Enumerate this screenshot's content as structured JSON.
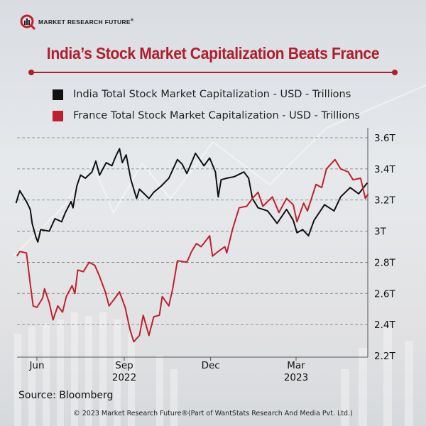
{
  "brand": {
    "name": "MARKET RESEARCH FUTURE",
    "reg": "®"
  },
  "title": "India’s Stock Market Capitalization Beats France",
  "source": "Source: Bloomberg",
  "copyright": "© 2023 Market Research Future®(Part of WantStats Research And Media Pvt. Ltd.)",
  "colors": {
    "india": "#111111",
    "france": "#c0202e",
    "accent": "#b11e2b"
  },
  "chart_data": {
    "type": "line",
    "title": "India’s Stock Market Capitalization Beats France",
    "xlabel": "",
    "ylabel": "",
    "x_unit": "days since 2022-06-01",
    "xlim": [
      -21,
      349
    ],
    "ylim": [
      2.2,
      3.6
    ],
    "yticks": [
      {
        "v": 2.2,
        "label": "2.2T"
      },
      {
        "v": 2.4,
        "label": "2.4T"
      },
      {
        "v": 2.6,
        "label": "2.6T"
      },
      {
        "v": 2.8,
        "label": "2.8T"
      },
      {
        "v": 3.0,
        "label": "3T"
      },
      {
        "v": 3.2,
        "label": "3.2T"
      },
      {
        "v": 3.4,
        "label": "3.4T"
      },
      {
        "v": 3.6,
        "label": "3.6T"
      }
    ],
    "xticks": [
      {
        "d": 0,
        "label": "Jun",
        "sub": ""
      },
      {
        "d": 92,
        "label": "Sep",
        "sub": "2022"
      },
      {
        "d": 183,
        "label": "Dec",
        "sub": ""
      },
      {
        "d": 273,
        "label": "Mar",
        "sub": "2023"
      }
    ],
    "grid": "horizontal-dashed",
    "legend_position": "top",
    "series": [
      {
        "name": "India Total Stock Market Capitalization - USD - Trillions",
        "color": "#111111",
        "x": [
          -22,
          -18,
          -11,
          -7,
          -5,
          -1,
          1,
          4,
          13,
          19,
          26,
          30,
          36,
          38,
          42,
          46,
          51,
          58,
          62,
          66,
          73,
          79,
          83,
          87,
          90,
          94,
          99,
          105,
          108,
          118,
          123,
          131,
          139,
          148,
          153,
          158,
          167,
          176,
          182,
          188,
          191,
          194,
          200,
          208,
          218,
          223,
          227,
          233,
          243,
          253,
          263,
          270,
          274,
          280,
          286,
          292,
          303,
          313,
          320,
          330,
          339,
          348
        ],
        "values": [
          3.18,
          3.26,
          3.19,
          3.14,
          3.05,
          2.96,
          2.93,
          3.01,
          3.0,
          3.08,
          3.06,
          3.12,
          3.19,
          3.15,
          3.29,
          3.36,
          3.34,
          3.38,
          3.45,
          3.36,
          3.44,
          3.42,
          3.48,
          3.53,
          3.44,
          3.49,
          3.33,
          3.21,
          3.27,
          3.21,
          3.25,
          3.29,
          3.34,
          3.46,
          3.43,
          3.37,
          3.5,
          3.42,
          3.47,
          3.38,
          3.22,
          3.33,
          3.34,
          3.35,
          3.38,
          3.34,
          3.21,
          3.15,
          3.13,
          3.05,
          3.14,
          3.07,
          2.99,
          3.01,
          2.97,
          3.07,
          3.17,
          3.13,
          3.22,
          3.28,
          3.24,
          3.31
        ]
      },
      {
        "name": "France Total Stock Market Capitalization - USD - Trillions",
        "color": "#c0202e",
        "x": [
          -21,
          -18,
          -11,
          -7,
          -4,
          0,
          6,
          8,
          13,
          17,
          22,
          27,
          31,
          37,
          40,
          43,
          49,
          55,
          61,
          66,
          72,
          76,
          81,
          87,
          93,
          98,
          102,
          108,
          112,
          118,
          123,
          129,
          132,
          139,
          143,
          148,
          158,
          163,
          168,
          173,
          182,
          185,
          191,
          198,
          200,
          206,
          213,
          221,
          227,
          233,
          238,
          248,
          255,
          263,
          270,
          274,
          281,
          285,
          294,
          300,
          305,
          314,
          320,
          328,
          333,
          341,
          346,
          349
        ],
        "values": [
          2.84,
          2.87,
          2.86,
          2.66,
          2.52,
          2.51,
          2.57,
          2.63,
          2.54,
          2.43,
          2.52,
          2.48,
          2.58,
          2.65,
          2.6,
          2.75,
          2.74,
          2.8,
          2.78,
          2.71,
          2.61,
          2.52,
          2.56,
          2.61,
          2.51,
          2.37,
          2.29,
          2.33,
          2.46,
          2.33,
          2.45,
          2.46,
          2.58,
          2.52,
          2.63,
          2.81,
          2.8,
          2.87,
          2.92,
          2.9,
          2.97,
          2.84,
          2.87,
          2.9,
          2.86,
          3.01,
          3.15,
          3.16,
          3.21,
          3.25,
          3.16,
          3.22,
          3.12,
          3.21,
          3.17,
          3.06,
          3.18,
          3.13,
          3.3,
          3.28,
          3.4,
          3.46,
          3.4,
          3.38,
          3.33,
          3.34,
          3.21,
          3.24
        ]
      }
    ]
  }
}
